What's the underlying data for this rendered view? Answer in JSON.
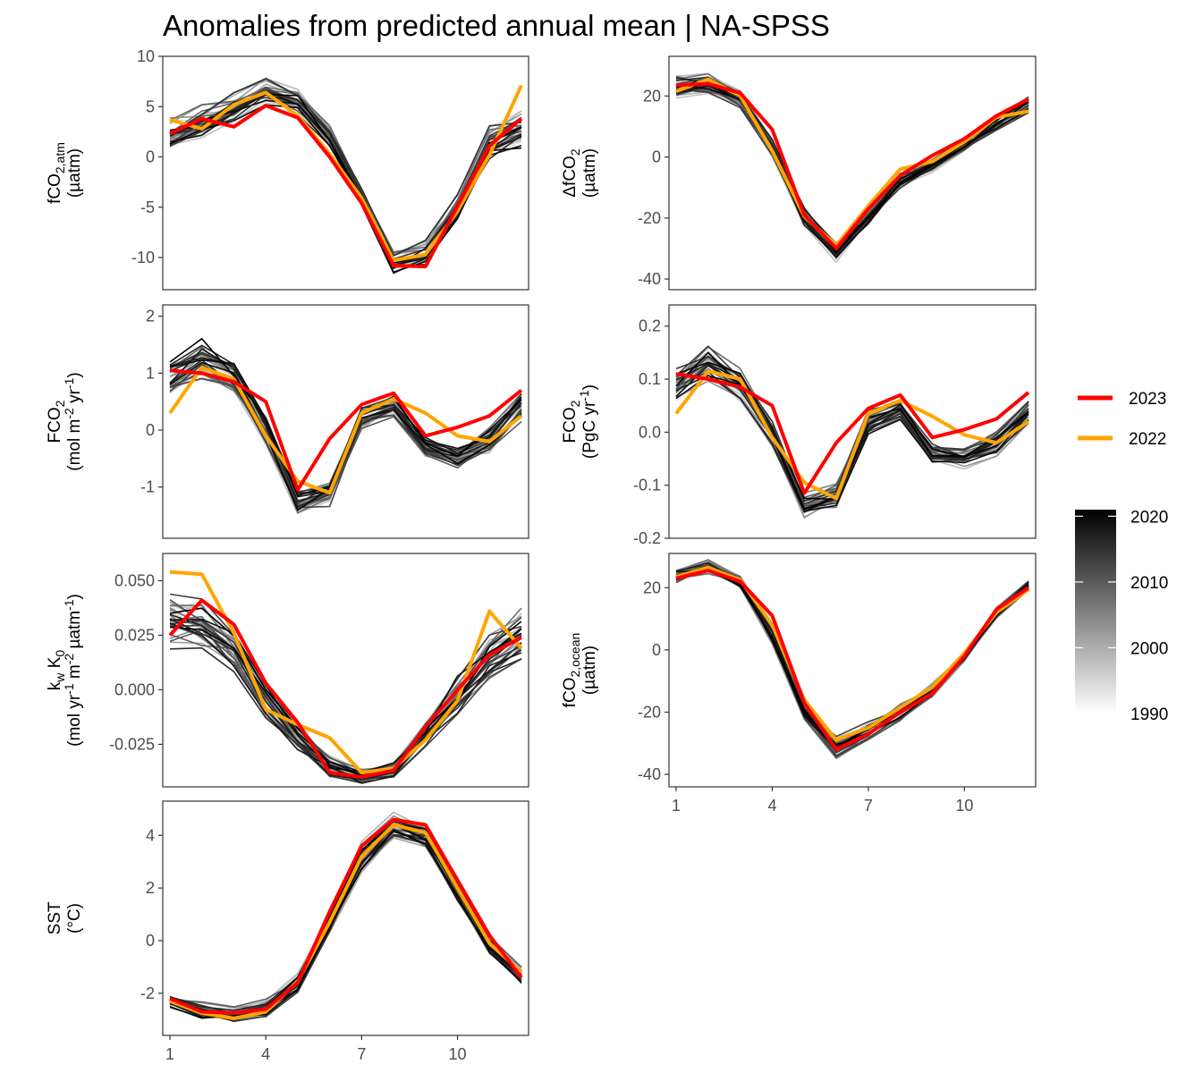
{
  "title": "Anomalies from predicted annual mean | NA-SPSS",
  "colors": {
    "year_2023": "#ff0000",
    "year_2022": "#ffa500",
    "history_dark": "#000000",
    "history_light": "#e6e6e6",
    "panel_border": "#333333",
    "tick_text": "#4d4d4d"
  },
  "legend": {
    "highlight": [
      {
        "label": "2023",
        "color": "#ff0000"
      },
      {
        "label": "2022",
        "color": "#ffa500"
      }
    ],
    "colorbar": {
      "tick_labels": [
        "2020",
        "2010",
        "2000",
        "1990"
      ],
      "range": [
        1990,
        2021
      ]
    }
  },
  "x_axis": {
    "tick_labels": [
      "1",
      "4",
      "7",
      "10"
    ],
    "range": [
      1,
      12
    ]
  },
  "chart_data": [
    {
      "type": "line",
      "panel": "fco2-atm",
      "ylabel": [
        [
          {
            "t": "fCO"
          },
          {
            "t": "2,atm",
            "s": "sub"
          }
        ],
        [
          {
            "t": "(µatm)"
          }
        ]
      ],
      "ylim": [
        -13.2,
        10
      ],
      "yticks": [
        -10,
        -5,
        0,
        5,
        10
      ],
      "ytick_labels": [
        "-10",
        "-5",
        "0",
        "5",
        "10"
      ],
      "x": [
        1,
        2,
        3,
        4,
        5,
        6,
        7,
        8,
        9,
        10,
        11,
        12
      ],
      "climatology": [
        2,
        3.5,
        5,
        6.5,
        5.5,
        2,
        -4,
        -10.5,
        -9.5,
        -5,
        1.5,
        3
      ],
      "history_spread": [
        1.6,
        1.5,
        1.4,
        1.2,
        1.0,
        0.9,
        0.8,
        0.9,
        1.0,
        1.2,
        1.4,
        1.6
      ],
      "series": [
        {
          "name": "2023",
          "values": [
            2.3,
            3.8,
            3.0,
            5.1,
            3.9,
            0.0,
            -4.6,
            -10.8,
            -10.9,
            -4.9,
            1.1,
            3.8
          ]
        },
        {
          "name": "2022",
          "values": [
            3.7,
            2.8,
            5.2,
            6.4,
            4.1,
            0.3,
            -4.1,
            -10.3,
            -9.7,
            -5.4,
            0.2,
            7.1
          ]
        }
      ]
    },
    {
      "type": "line",
      "panel": "delta-fco2",
      "ylabel": [
        [
          {
            "t": "ΔfCO"
          },
          {
            "t": "2",
            "s": "sub"
          }
        ],
        [
          {
            "t": "(µatm)"
          }
        ]
      ],
      "ylim": [
        -43.5,
        33
      ],
      "yticks": [
        -40,
        -20,
        0,
        20
      ],
      "ytick_labels": [
        "-40",
        "-20",
        "0",
        "20"
      ],
      "x": [
        1,
        2,
        3,
        4,
        5,
        6,
        7,
        8,
        9,
        10,
        11,
        12
      ],
      "climatology": [
        23,
        23.5,
        19,
        3,
        -20,
        -31,
        -20,
        -8,
        -3,
        4,
        11,
        17
      ],
      "history_spread": [
        3.0,
        3.0,
        2.5,
        2.5,
        3.0,
        3.0,
        2.5,
        2.0,
        1.8,
        1.8,
        2.0,
        2.5
      ],
      "series": [
        {
          "name": "2023",
          "values": [
            23.5,
            24.0,
            21.0,
            9.0,
            -19.0,
            -30.0,
            -17.0,
            -6.0,
            0.5,
            6.0,
            13.5,
            19.0
          ]
        },
        {
          "name": "2022",
          "values": [
            21.5,
            25.5,
            20.0,
            2.0,
            -19.5,
            -29.0,
            -16.0,
            -4.0,
            -1.5,
            5.0,
            13.0,
            15.0
          ]
        }
      ]
    },
    {
      "type": "line",
      "panel": "fco2-flux-area",
      "ylabel": [
        [
          {
            "t": "FCO"
          },
          {
            "t": "2",
            "s": "sub"
          }
        ],
        [
          {
            "t": "(mol m"
          },
          {
            "t": "-2",
            "s": "sup"
          },
          {
            "t": " yr"
          },
          {
            "t": "-1",
            "s": "sup"
          },
          {
            "t": ")"
          }
        ]
      ],
      "ylim": [
        -1.9,
        2.2
      ],
      "yticks": [
        -1,
        0,
        1,
        2
      ],
      "ytick_labels": [
        "-1",
        "0",
        "1",
        "2"
      ],
      "x": [
        1,
        2,
        3,
        4,
        5,
        6,
        7,
        8,
        9,
        10,
        11,
        12
      ],
      "climatology": [
        0.9,
        1.2,
        0.9,
        0.0,
        -1.3,
        -1.1,
        0.2,
        0.4,
        -0.3,
        -0.5,
        -0.2,
        0.4
      ],
      "history_spread": [
        0.25,
        0.3,
        0.25,
        0.2,
        0.2,
        0.2,
        0.2,
        0.15,
        0.15,
        0.15,
        0.2,
        0.2
      ],
      "series": [
        {
          "name": "2023",
          "values": [
            1.05,
            1.0,
            0.85,
            0.5,
            -1.05,
            -0.15,
            0.45,
            0.65,
            -0.1,
            0.05,
            0.25,
            0.7
          ]
        },
        {
          "name": "2022",
          "values": [
            0.3,
            1.1,
            0.9,
            -0.1,
            -0.9,
            -1.1,
            0.3,
            0.55,
            0.3,
            -0.1,
            -0.2,
            0.25
          ]
        }
      ]
    },
    {
      "type": "line",
      "panel": "fco2-flux-integrated",
      "ylabel": [
        [
          {
            "t": "FCO"
          },
          {
            "t": "2",
            "s": "sub"
          }
        ],
        [
          {
            "t": "(PgC yr"
          },
          {
            "t": "-1",
            "s": "sup"
          },
          {
            "t": ")"
          }
        ]
      ],
      "ylim": [
        -0.2,
        0.24
      ],
      "yticks": [
        -0.2,
        -0.1,
        0.0,
        0.1,
        0.2
      ],
      "ytick_labels": [
        "-0.2",
        "-0.1",
        "0.0",
        "0.1",
        "0.2"
      ],
      "x": [
        1,
        2,
        3,
        4,
        5,
        6,
        7,
        8,
        9,
        10,
        11,
        12
      ],
      "climatology": [
        0.09,
        0.13,
        0.09,
        0.0,
        -0.14,
        -0.12,
        0.02,
        0.04,
        -0.04,
        -0.05,
        -0.02,
        0.04
      ],
      "history_spread": [
        0.025,
        0.03,
        0.025,
        0.02,
        0.02,
        0.02,
        0.02,
        0.015,
        0.015,
        0.015,
        0.02,
        0.02
      ],
      "series": [
        {
          "name": "2023",
          "values": [
            0.11,
            0.1,
            0.085,
            0.05,
            -0.115,
            -0.02,
            0.045,
            0.07,
            -0.01,
            0.005,
            0.025,
            0.075
          ]
        },
        {
          "name": "2022",
          "values": [
            0.035,
            0.115,
            0.1,
            -0.01,
            -0.095,
            -0.125,
            0.035,
            0.06,
            0.03,
            -0.005,
            -0.02,
            0.02
          ]
        }
      ]
    },
    {
      "type": "line",
      "panel": "kw-k0",
      "ylabel": [
        [
          {
            "t": "k"
          },
          {
            "t": "w",
            "s": "sub"
          },
          {
            "t": " K"
          },
          {
            "t": "0",
            "s": "sub"
          }
        ],
        [
          {
            "t": "(mol yr"
          },
          {
            "t": "-1",
            "s": "sup"
          },
          {
            "t": " m"
          },
          {
            "t": "-2",
            "s": "sup"
          },
          {
            "t": " µatm"
          },
          {
            "t": "-1",
            "s": "sup"
          },
          {
            "t": ")"
          }
        ]
      ],
      "ylim": [
        -0.0445,
        0.0625
      ],
      "yticks": [
        -0.025,
        0.0,
        0.025,
        0.05
      ],
      "ytick_labels": [
        "-0.025",
        "0.000",
        "0.025",
        "0.050"
      ],
      "x": [
        1,
        2,
        3,
        4,
        5,
        6,
        7,
        8,
        9,
        10,
        11,
        12
      ],
      "climatology": [
        0.032,
        0.03,
        0.018,
        -0.005,
        -0.022,
        -0.035,
        -0.04,
        -0.037,
        -0.02,
        -0.003,
        0.015,
        0.025
      ],
      "history_spread": [
        0.01,
        0.01,
        0.008,
        0.007,
        0.006,
        0.004,
        0.003,
        0.003,
        0.005,
        0.008,
        0.01,
        0.01
      ],
      "series": [
        {
          "name": "2023",
          "values": [
            0.025,
            0.041,
            0.03,
            0.003,
            -0.015,
            -0.038,
            -0.04,
            -0.037,
            -0.017,
            0.0,
            0.016,
            0.024
          ]
        },
        {
          "name": "2022",
          "values": [
            0.054,
            0.053,
            0.026,
            -0.009,
            -0.016,
            -0.022,
            -0.038,
            -0.036,
            -0.023,
            -0.005,
            0.036,
            0.019
          ]
        }
      ]
    },
    {
      "type": "line",
      "panel": "fco2-ocean",
      "ylabel": [
        [
          {
            "t": "fCO"
          },
          {
            "t": "2,ocean",
            "s": "sub"
          }
        ],
        [
          {
            "t": "(µatm)"
          }
        ]
      ],
      "ylim": [
        -44,
        31
      ],
      "yticks": [
        -40,
        -20,
        0,
        20
      ],
      "ytick_labels": [
        "-40",
        "-20",
        "0",
        "20"
      ],
      "x": [
        1,
        2,
        3,
        4,
        5,
        6,
        7,
        8,
        9,
        10,
        11,
        12
      ],
      "climatology": [
        24,
        27,
        22,
        5,
        -20,
        -31,
        -26,
        -20,
        -13,
        -2,
        12,
        21
      ],
      "history_spread": [
        2.0,
        2.0,
        2.0,
        2.5,
        3.0,
        3.5,
        3.0,
        2.5,
        2.0,
        1.5,
        1.5,
        1.5
      ],
      "series": [
        {
          "name": "2023",
          "values": [
            23.0,
            25.5,
            22.0,
            11.0,
            -17.0,
            -32.0,
            -27.0,
            -20.0,
            -14.0,
            -2.0,
            13.0,
            20.0
          ]
        },
        {
          "name": "2022",
          "values": [
            23.5,
            26.5,
            22.5,
            8.0,
            -16.0,
            -29.0,
            -25.0,
            -18.5,
            -12.0,
            -1.0,
            12.0,
            19.5
          ]
        }
      ]
    },
    {
      "type": "line",
      "panel": "sst",
      "ylabel": [
        [
          {
            "t": "SST"
          }
        ],
        [
          {
            "t": "(°C)"
          }
        ]
      ],
      "ylim": [
        -3.6,
        5.3
      ],
      "yticks": [
        -2,
        0,
        2,
        4
      ],
      "ytick_labels": [
        "-2",
        "0",
        "2",
        "4"
      ],
      "x": [
        1,
        2,
        3,
        4,
        5,
        6,
        7,
        8,
        9,
        10,
        11,
        12
      ],
      "climatology": [
        -2.3,
        -2.65,
        -2.8,
        -2.55,
        -1.6,
        0.6,
        3.2,
        4.4,
        4.0,
        1.9,
        -0.2,
        -1.3
      ],
      "history_spread": [
        0.25,
        0.25,
        0.25,
        0.3,
        0.3,
        0.35,
        0.5,
        0.4,
        0.35,
        0.3,
        0.3,
        0.25
      ],
      "series": [
        {
          "name": "2023",
          "values": [
            -2.2,
            -2.7,
            -2.75,
            -2.6,
            -1.6,
            1.1,
            3.6,
            4.6,
            4.4,
            2.3,
            0.2,
            -1.4
          ]
        },
        {
          "name": "2022",
          "values": [
            -2.3,
            -2.75,
            -2.95,
            -2.7,
            -1.55,
            0.7,
            3.2,
            4.4,
            4.1,
            2.0,
            -0.1,
            -1.2
          ]
        }
      ]
    }
  ]
}
